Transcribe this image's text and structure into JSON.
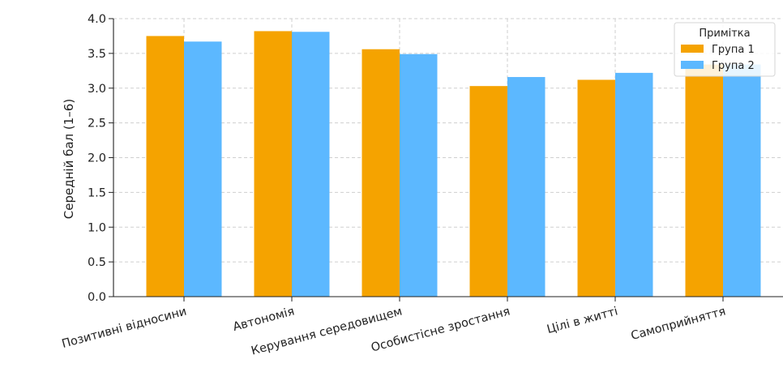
{
  "chart_data": {
    "type": "bar",
    "title": "",
    "xlabel": "",
    "ylabel": "Середній бал (1–6)",
    "categories": [
      "Позитивні відносини",
      "Автономія",
      "Керування середовищем",
      "Особистісне зростання",
      "Цілі в житті",
      "Самоприйняття"
    ],
    "series": [
      {
        "name": "Група 1",
        "color": "#F5A300",
        "values": [
          3.75,
          3.82,
          3.56,
          3.03,
          3.12,
          3.34
        ]
      },
      {
        "name": "Група 2",
        "color": "#5CB8FF",
        "values": [
          3.67,
          3.81,
          3.49,
          3.16,
          3.22,
          3.34
        ]
      }
    ],
    "ylim": [
      0,
      4.0
    ],
    "yticks": [
      "0.0",
      "0.5",
      "1.0",
      "1.5",
      "2.0",
      "2.5",
      "3.0",
      "3.5",
      "4.0"
    ],
    "grid": true,
    "legend": {
      "title": "Примітка",
      "placement": "top-right"
    }
  }
}
